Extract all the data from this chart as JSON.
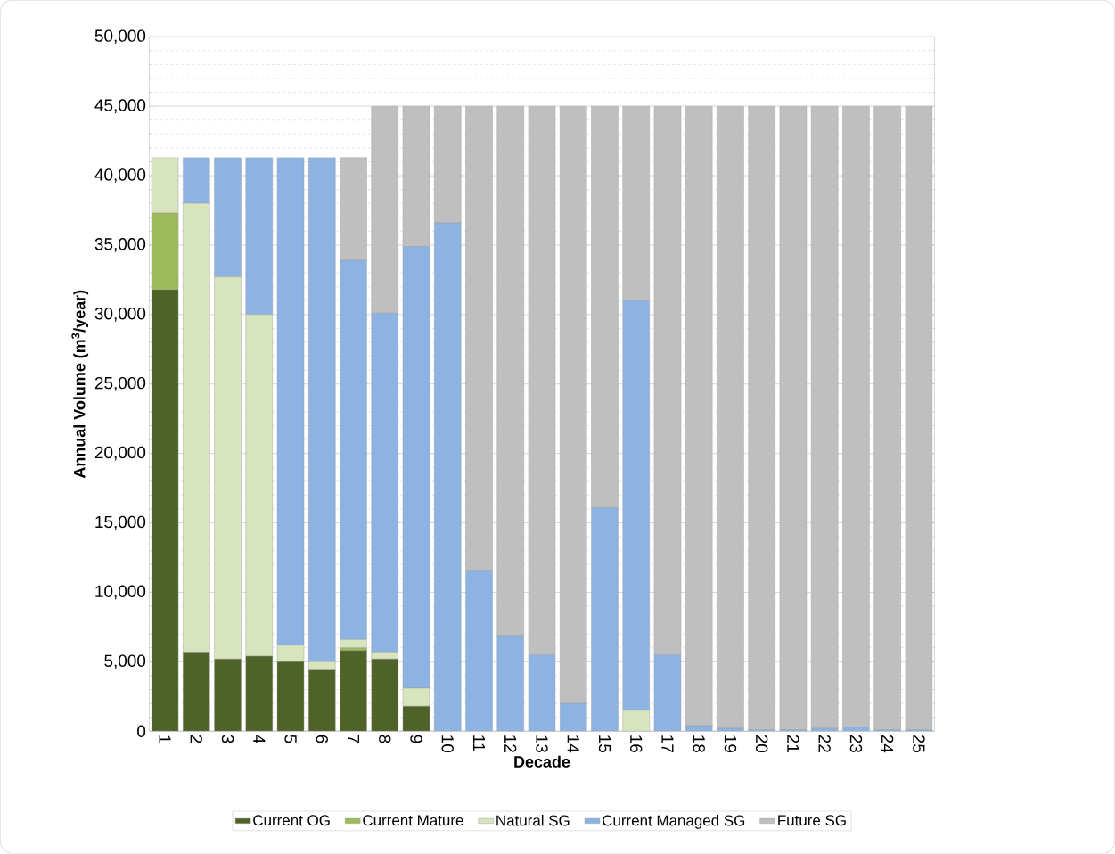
{
  "chart_data": {
    "type": "bar",
    "stacked": true,
    "xlabel": "Decade",
    "ylabel": "Annual Volume (m$^{3}$/year)",
    "categories": [
      "1",
      "2",
      "3",
      "4",
      "5",
      "6",
      "7",
      "8",
      "9",
      "10",
      "11",
      "12",
      "13",
      "14",
      "15",
      "16",
      "17",
      "18",
      "19",
      "20",
      "21",
      "22",
      "23",
      "24",
      "25"
    ],
    "series": [
      {
        "name": "Current OG",
        "color": "#4f6228",
        "values": [
          31800,
          5700,
          5200,
          5400,
          5000,
          4400,
          5800,
          5200,
          1800,
          0,
          0,
          0,
          0,
          0,
          0,
          0,
          0,
          0,
          0,
          0,
          0,
          0,
          0,
          0,
          0
        ]
      },
      {
        "name": "Current Mature",
        "color": "#9bbb59",
        "values": [
          5500,
          0,
          0,
          0,
          0,
          0,
          200,
          0,
          0,
          0,
          0,
          0,
          0,
          0,
          0,
          0,
          0,
          0,
          0,
          0,
          0,
          0,
          0,
          0,
          0
        ]
      },
      {
        "name": "Natural SG",
        "color": "#d7e4bd",
        "values": [
          4000,
          32300,
          27500,
          24600,
          1200,
          600,
          600,
          500,
          1300,
          0,
          0,
          0,
          0,
          0,
          0,
          1500,
          0,
          0,
          0,
          0,
          0,
          0,
          0,
          0,
          0
        ]
      },
      {
        "name": "Current Managed SG",
        "color": "#8db3e2",
        "values": [
          0,
          3300,
          8600,
          11300,
          35100,
          36300,
          27300,
          24400,
          31800,
          36600,
          11600,
          6900,
          5500,
          2000,
          16100,
          29500,
          5500,
          400,
          200,
          100,
          100,
          200,
          300,
          100,
          100
        ]
      },
      {
        "name": "Future SG",
        "color": "#bfbfbf",
        "values": [
          0,
          0,
          0,
          0,
          0,
          0,
          7400,
          14900,
          10100,
          8400,
          33400,
          38100,
          39500,
          43000,
          28900,
          14000,
          39500,
          44600,
          44800,
          44900,
          44900,
          44800,
          44700,
          44900,
          44900
        ]
      }
    ],
    "ylim": [
      0,
      50000
    ],
    "yticks": [
      0,
      {
        "value": 5000,
        "label": "5,000"
      },
      {
        "value": 10000,
        "label": "10,000"
      },
      {
        "value": 15000,
        "label": "15,000"
      },
      {
        "value": 20000,
        "label": "20,000"
      },
      {
        "value": 25000,
        "label": "25,000"
      },
      {
        "value": 30000,
        "label": "30,000"
      },
      {
        "value": 35000,
        "label": "35,000"
      },
      {
        "value": 40000,
        "label": "40,000"
      },
      {
        "value": 45000,
        "label": "45,000"
      },
      {
        "value": 50000,
        "label": "50,000"
      }
    ],
    "grid": "y",
    "legend": "bottom"
  }
}
